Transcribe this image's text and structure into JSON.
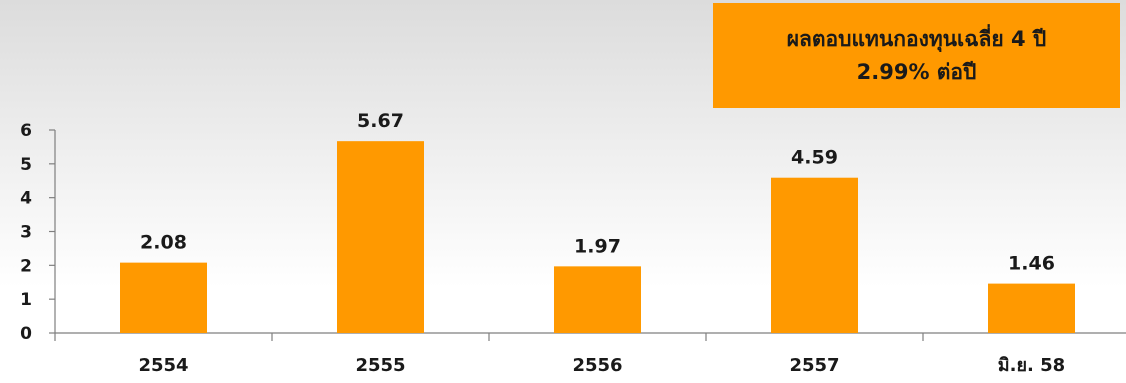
{
  "callout": {
    "line1": "ผลตอบแทนกองทุนเฉลี่ย 4 ปี",
    "line2": "2.99% ต่อปี",
    "color": "#ff9900"
  },
  "chart_data": {
    "type": "bar",
    "title": "",
    "xlabel": "",
    "ylabel": "",
    "categories": [
      "2554",
      "2555",
      "2556",
      "2557",
      "มิ.ย. 58"
    ],
    "values": [
      2.08,
      5.67,
      1.97,
      4.59,
      1.46
    ],
    "value_labels": [
      "2.08",
      "5.67",
      "1.97",
      "4.59",
      "1.46"
    ],
    "yticks": [
      "0",
      "1",
      "2",
      "3",
      "4",
      "5",
      "6"
    ],
    "ylim": [
      0,
      6
    ],
    "grid": false,
    "legend": "none",
    "bar_color": "#ff9900"
  }
}
